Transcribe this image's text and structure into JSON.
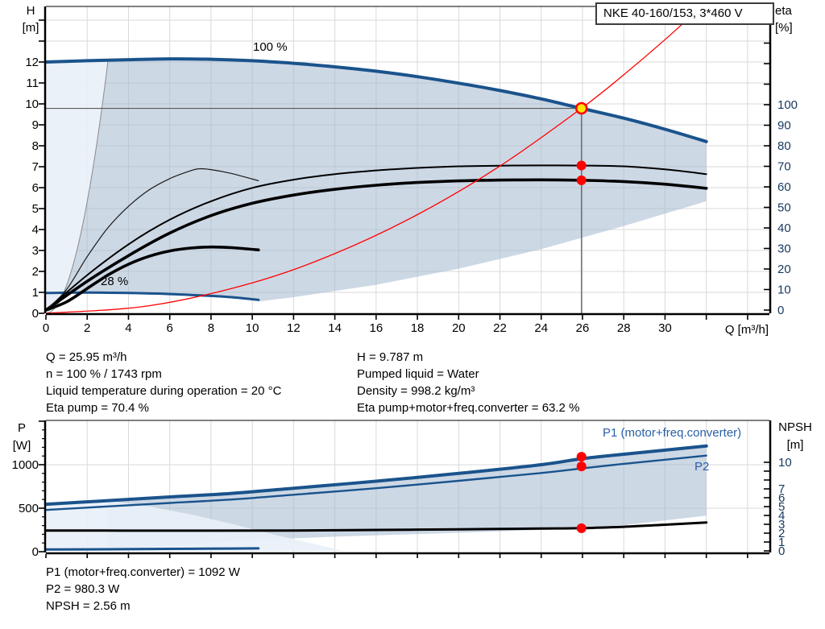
{
  "title_box": {
    "label": "NKE 40-160/153, 3*460 V"
  },
  "operating_point": {
    "q": 25.95,
    "h": 9.787,
    "eta_pump": 70.4,
    "eta_total": 63.2,
    "p1": 1092,
    "p2": 980.3,
    "npsh": 2.56
  },
  "axis_captions": {
    "h_top": "H",
    "h_bottom": "[m]",
    "eta_top": "eta",
    "eta_bottom": "[%]",
    "q_label": "Q [m³/h]",
    "p_top": "P",
    "p_bottom": "[W]",
    "npsh_top": "NPSH",
    "npsh_bottom": "[m]"
  },
  "annotations": {
    "label_100": "100 %",
    "label_28": "28 %",
    "p1_curve_label": "P1 (motor+freq.converter)",
    "p2_curve_label": "P2"
  },
  "mid_text": {
    "left": [
      "Q = 25.95 m³/h",
      "n = 100 % / 1743 rpm",
      "Liquid temperature during operation = 20 °C",
      "Eta pump = 70.4 %"
    ],
    "right": [
      "H = 9.787 m",
      "Pumped liquid = Water",
      "Density = 998.2 kg/m³",
      "Eta pump+motor+freq.converter = 63.2 %"
    ]
  },
  "bottom_text": [
    "P1 (motor+freq.converter) = 1092 W",
    "P2 = 980.3 W",
    "NPSH = 2.56 m"
  ],
  "colors": {
    "curve_blue": "#1a538c",
    "label_blue": "#2a5fa8",
    "right_tick_blue": "#17375d",
    "red": "#ff0000",
    "yellow": "#ffe60a",
    "grid": "#d9d9d9",
    "fill_dark": "rgba(164,184,208,0.55)",
    "fill_pale": "rgba(233,240,249,0.92)",
    "duty_line": "#595959",
    "thin_parabola": "#8a8a8a"
  },
  "chart_data": [
    {
      "type": "line",
      "title": "NKE 40-160/153, 3*460 V",
      "xlabel": "Q [m³/h]",
      "ylabel_left": "H [m]",
      "ylabel_right": "eta [%]",
      "x_tick_labels": [
        0,
        2,
        4,
        6,
        8,
        10,
        12,
        14,
        16,
        18,
        20,
        22,
        24,
        26,
        28,
        30
      ],
      "x_grid_step": 2,
      "x_grid_max": 34,
      "y_left_ticks": [
        0,
        1,
        2,
        3,
        4,
        5,
        6,
        7,
        8,
        9,
        10,
        11,
        12
      ],
      "y_left_tick_max": 14,
      "y_right_ticks": [
        0,
        10,
        20,
        30,
        40,
        50,
        60,
        70,
        80,
        90,
        100
      ],
      "y_right_tick_max": 140,
      "xlim": [
        0,
        35
      ],
      "ylim_left": [
        0,
        14.6
      ],
      "ylim_right": [
        0,
        148
      ],
      "series": [
        {
          "name": "H at 100% speed",
          "axis": "H",
          "width": 4,
          "points": [
            [
              0,
              12.0
            ],
            [
              2,
              12.06
            ],
            [
              4,
              12.11
            ],
            [
              6,
              12.15
            ],
            [
              8,
              12.13
            ],
            [
              10,
              12.06
            ],
            [
              12,
              11.94
            ],
            [
              14,
              11.77
            ],
            [
              16,
              11.56
            ],
            [
              18,
              11.3
            ],
            [
              20,
              10.99
            ],
            [
              22,
              10.64
            ],
            [
              24,
              10.24
            ],
            [
              25.95,
              9.787
            ],
            [
              28,
              9.32
            ],
            [
              30,
              8.79
            ],
            [
              32,
              8.2
            ]
          ]
        },
        {
          "name": "H at 28% speed",
          "axis": "H",
          "width": 3,
          "points": [
            [
              0,
              0.97
            ],
            [
              2,
              0.99
            ],
            [
              4,
              0.97
            ],
            [
              6,
              0.92
            ],
            [
              8,
              0.83
            ],
            [
              9,
              0.77
            ],
            [
              10.3,
              0.64
            ]
          ]
        },
        {
          "name": "Eta pump 100%",
          "axis": "eta",
          "width": 2,
          "color": "#000000",
          "points": [
            [
              0,
              0
            ],
            [
              2,
              17
            ],
            [
              4,
              32
            ],
            [
              6,
              44
            ],
            [
              8,
              53
            ],
            [
              10,
              59.5
            ],
            [
              12,
              63.5
            ],
            [
              14,
              66.2
            ],
            [
              16,
              68
            ],
            [
              18,
              69.2
            ],
            [
              20,
              70
            ],
            [
              22,
              70.3
            ],
            [
              24,
              70.45
            ],
            [
              25.95,
              70.4
            ],
            [
              28,
              70
            ],
            [
              30,
              68.5
            ],
            [
              32,
              66.2
            ]
          ]
        },
        {
          "name": "Eta pump+motor+freq.converter 100%",
          "axis": "eta",
          "width": 3.6,
          "color": "#000000",
          "points": [
            [
              0,
              0
            ],
            [
              2,
              14
            ],
            [
              4,
              26.5
            ],
            [
              6,
              37.5
            ],
            [
              8,
              46
            ],
            [
              10,
              52
            ],
            [
              12,
              56
            ],
            [
              14,
              58.8
            ],
            [
              16,
              60.8
            ],
            [
              18,
              62.1
            ],
            [
              20,
              62.9
            ],
            [
              22,
              63.3
            ],
            [
              24,
              63.4
            ],
            [
              25.95,
              63.2
            ],
            [
              28,
              62.6
            ],
            [
              30,
              61.3
            ],
            [
              32,
              59.3
            ]
          ]
        },
        {
          "name": "Eta pump reduced speed",
          "axis": "eta",
          "width": 1.2,
          "color": "#1a1a1a",
          "points": [
            [
              0,
              0
            ],
            [
              1,
              10
            ],
            [
              2,
              26
            ],
            [
              3,
              40
            ],
            [
              4,
              50.5
            ],
            [
              5,
              58.5
            ],
            [
              6,
              64
            ],
            [
              7,
              67.8
            ],
            [
              7.4,
              68.8
            ],
            [
              8,
              68.4
            ],
            [
              9,
              66.5
            ],
            [
              10.3,
              63
            ]
          ]
        },
        {
          "name": "Eta total reduced speed",
          "axis": "eta",
          "width": 3.6,
          "color": "#000000",
          "points": [
            [
              0,
              0
            ],
            [
              1,
              4
            ],
            [
              2,
              10.5
            ],
            [
              3,
              17
            ],
            [
              4,
              22.3
            ],
            [
              5,
              26.2
            ],
            [
              6,
              28.8
            ],
            [
              7,
              30.2
            ],
            [
              8,
              30.7
            ],
            [
              9,
              30.4
            ],
            [
              10.3,
              29.3
            ]
          ]
        },
        {
          "name": "System curve",
          "axis": "H",
          "width": 1.3,
          "color": "#ff0000",
          "points": [
            [
              0,
              0
            ],
            [
              5,
              0.363
            ],
            [
              10,
              1.453
            ],
            [
              14,
              2.85
            ],
            [
              18,
              4.71
            ],
            [
              22,
              7.03
            ],
            [
              25.95,
              9.787
            ],
            [
              28,
              11.39
            ],
            [
              30,
              13.07
            ],
            [
              31.6,
              14.5
            ]
          ]
        }
      ],
      "envelope": {
        "affinity_left": [
          [
            0,
            0
          ],
          [
            0.25,
            0.083
          ],
          [
            0.5,
            0.33
          ],
          [
            0.75,
            0.75
          ],
          [
            1,
            1.33
          ],
          [
            1.25,
            2.08
          ],
          [
            1.5,
            3.0
          ],
          [
            1.75,
            4.08
          ],
          [
            2,
            5.33
          ],
          [
            2.25,
            6.75
          ],
          [
            2.5,
            8.33
          ],
          [
            2.75,
            10.08
          ],
          [
            3,
            12.0
          ]
        ],
        "lower_right": [
          [
            10.3,
            0.56
          ],
          [
            12,
            0.77
          ],
          [
            16,
            1.36
          ],
          [
            20,
            2.13
          ],
          [
            24,
            3.06
          ],
          [
            28,
            4.17
          ],
          [
            32,
            5.35
          ]
        ]
      }
    },
    {
      "type": "line",
      "xlabel": "",
      "ylabel_left": "P [W]",
      "ylabel_right": "NPSH [m]",
      "x_grid_step": 2,
      "x_grid_max": 34,
      "y_left_ticks": [
        0,
        500,
        1000
      ],
      "y_left_minor_step": 100,
      "y_left_minor_max": 1500,
      "y_right_ticks": [
        0,
        1,
        2,
        3,
        4,
        5,
        6,
        7,
        10
      ],
      "y_right_tick_all": [
        0,
        1,
        2,
        3,
        4,
        5,
        6,
        7,
        8,
        9,
        10
      ],
      "xlim": [
        0,
        35
      ],
      "ylim_left": [
        0,
        1510
      ],
      "ylim_right": [
        0,
        14.7
      ],
      "series": [
        {
          "name": "P1 (motor+freq.converter)",
          "axis": "P",
          "width": 4,
          "points": [
            [
              0,
              545
            ],
            [
              3,
              587
            ],
            [
              6,
              630
            ],
            [
              9,
              670
            ],
            [
              12,
              730
            ],
            [
              16,
              810
            ],
            [
              20,
              900
            ],
            [
              24,
              1000
            ],
            [
              26,
              1070
            ],
            [
              28,
              1120
            ],
            [
              32,
              1215
            ]
          ]
        },
        {
          "name": "P2",
          "axis": "P",
          "width": 2.4,
          "points": [
            [
              0,
              480
            ],
            [
              3,
              520
            ],
            [
              6,
              560
            ],
            [
              9,
              600
            ],
            [
              12,
              655
            ],
            [
              16,
              730
            ],
            [
              20,
              815
            ],
            [
              24,
              905
            ],
            [
              26,
              958
            ],
            [
              28,
              1010
            ],
            [
              32,
              1105
            ]
          ]
        },
        {
          "name": "P at min speed",
          "axis": "P",
          "width": 3,
          "points": [
            [
              0,
              25
            ],
            [
              3,
              28
            ],
            [
              6,
              32
            ],
            [
              9,
              36
            ],
            [
              10.3,
              38
            ]
          ]
        },
        {
          "name": "NPSH",
          "axis": "NPSH",
          "width": 3,
          "color": "#000000",
          "points": [
            [
              0,
              2.3
            ],
            [
              6,
              2.28
            ],
            [
              12,
              2.3
            ],
            [
              16,
              2.36
            ],
            [
              20,
              2.44
            ],
            [
              24,
              2.52
            ],
            [
              25.95,
              2.56
            ],
            [
              28,
              2.72
            ],
            [
              30,
              2.95
            ],
            [
              32,
              3.2
            ]
          ]
        }
      ],
      "envelope": {
        "lower": [
          [
            3,
            18
          ],
          [
            6,
            72
          ],
          [
            9.4,
            130
          ],
          [
            14,
            172
          ],
          [
            20,
            218
          ],
          [
            26,
            268
          ],
          [
            28,
            305
          ],
          [
            32,
            415
          ]
        ],
        "pale_boundary": [
          [
            3,
            587
          ],
          [
            5,
            520
          ],
          [
            7,
            430
          ],
          [
            9,
            320
          ],
          [
            11,
            200
          ],
          [
            13,
            90
          ],
          [
            14.4,
            8
          ]
        ]
      }
    }
  ]
}
